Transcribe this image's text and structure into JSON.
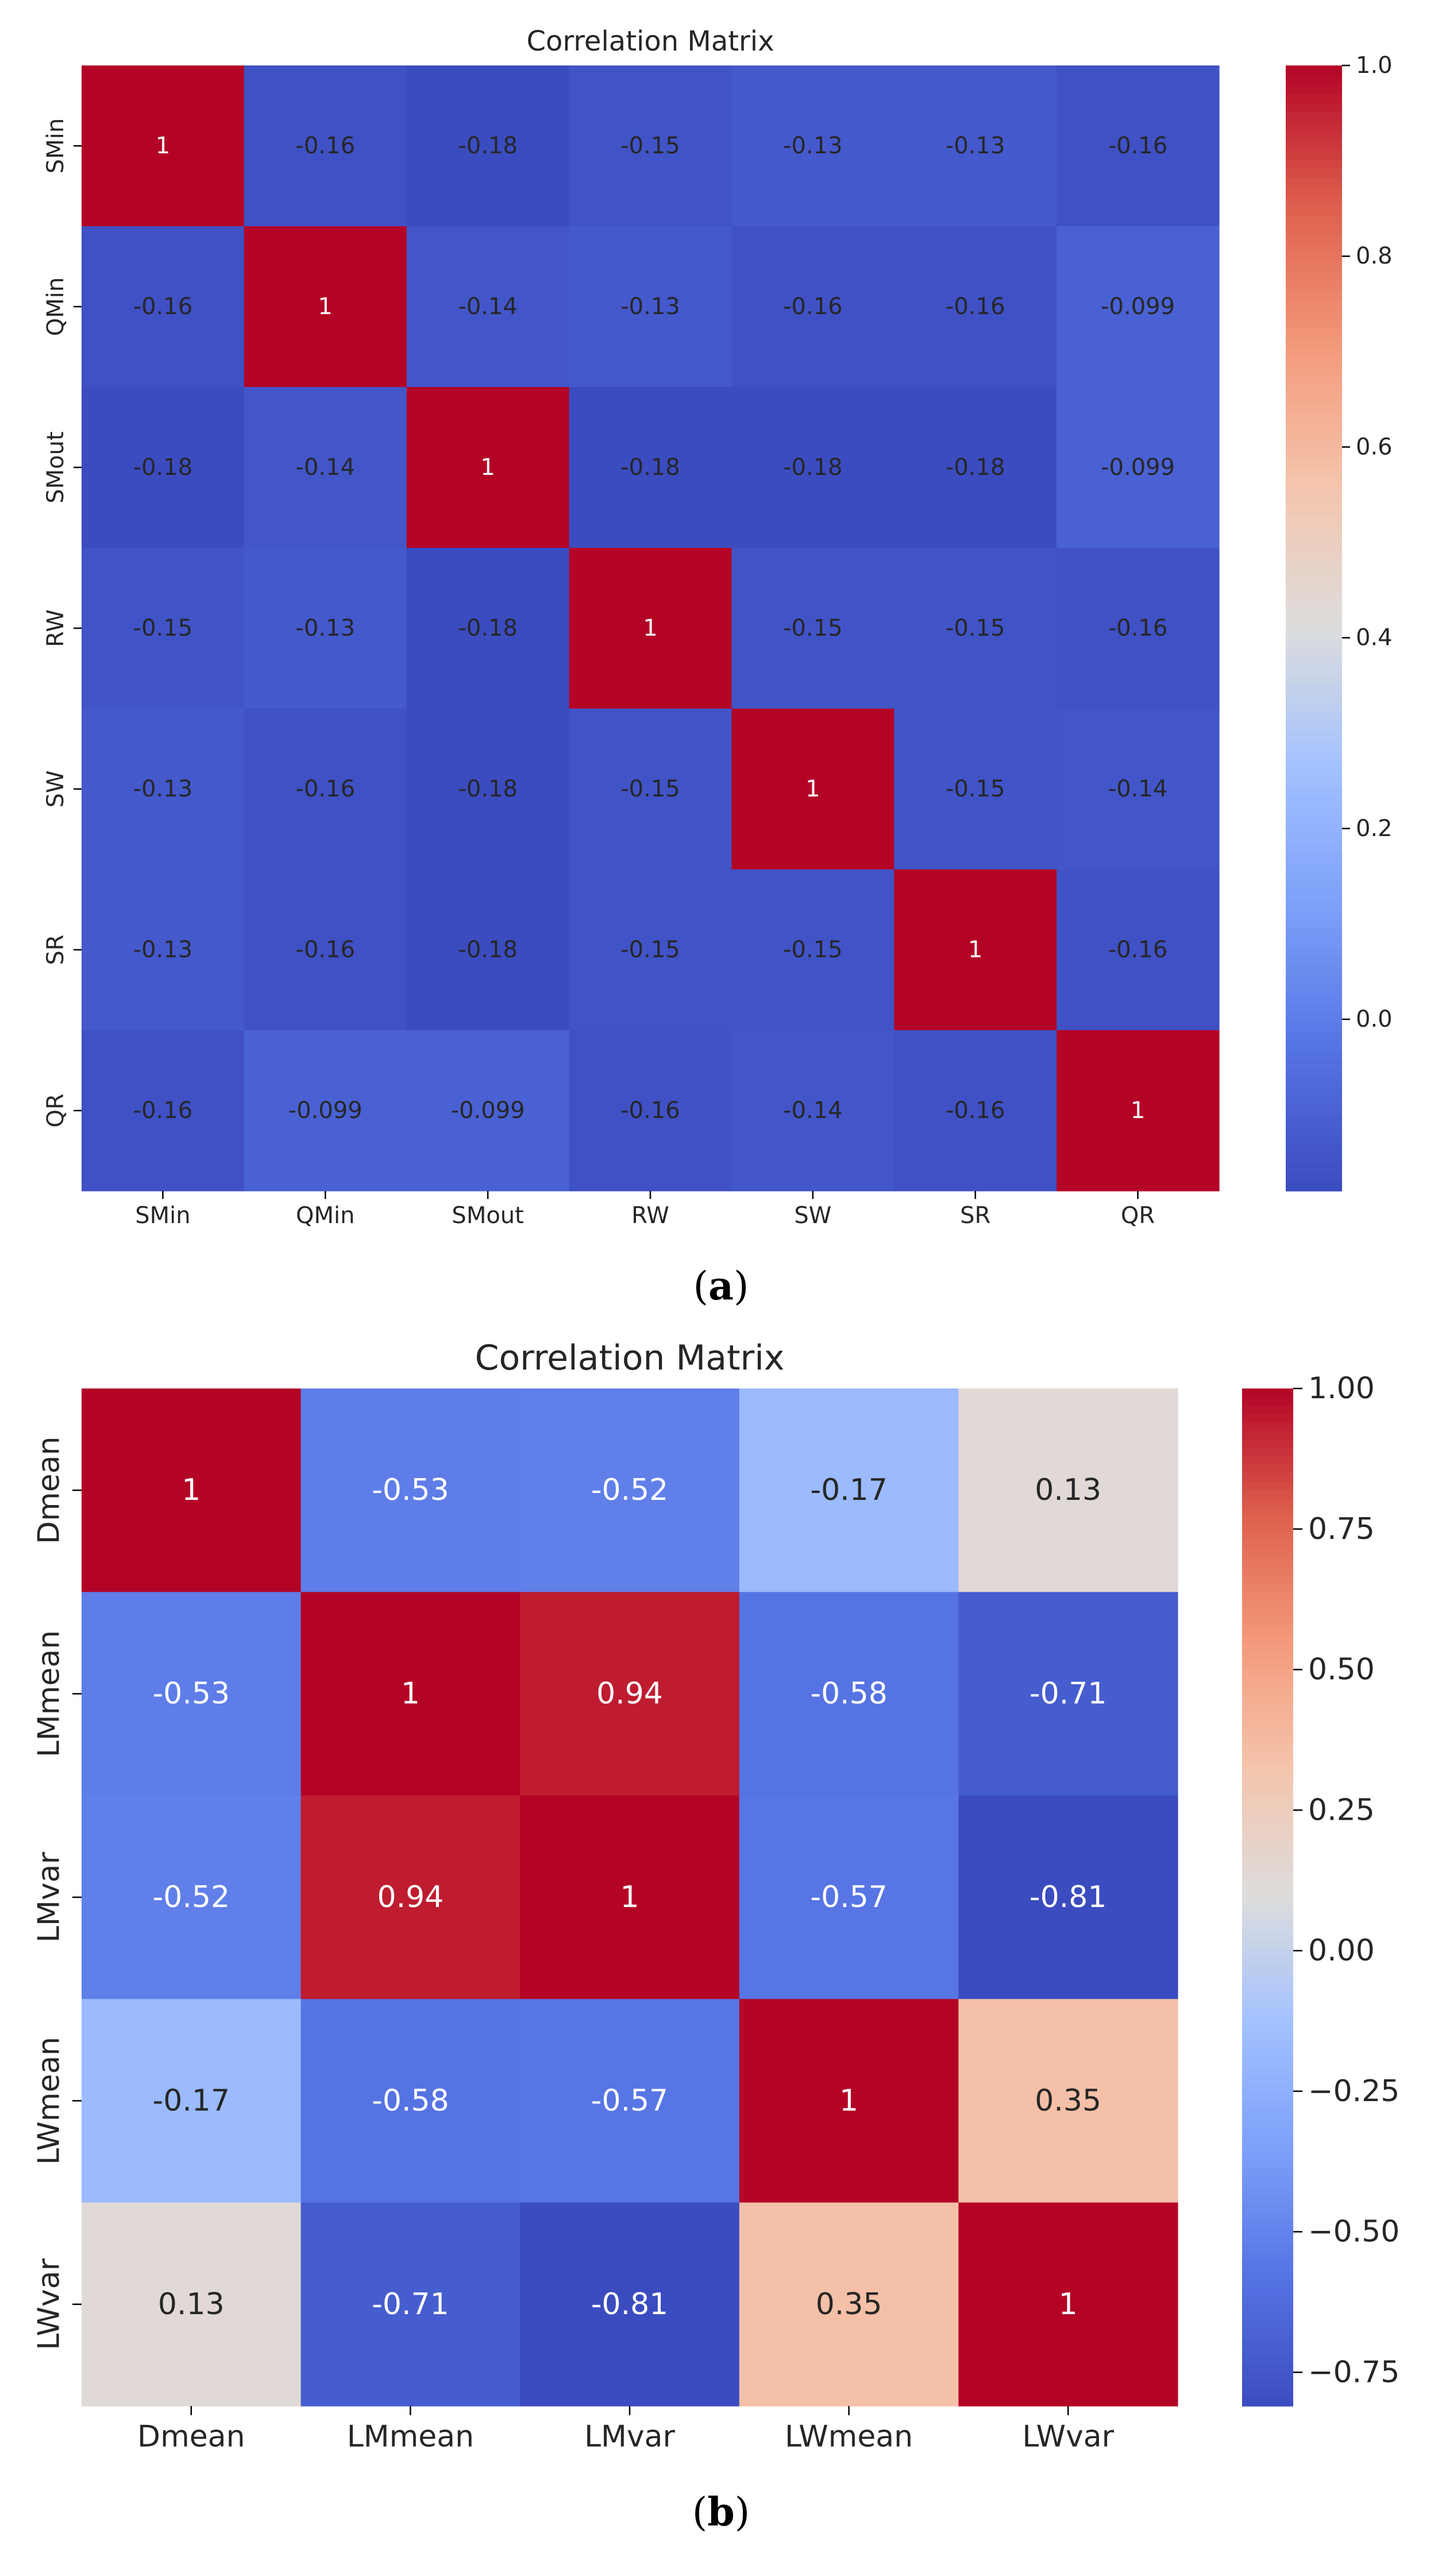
{
  "chart_data": [
    {
      "type": "heatmap",
      "title": "Correlation Matrix",
      "labels": [
        "SMin",
        "QMin",
        "SMout",
        "RW",
        "SW",
        "SR",
        "QR"
      ],
      "values": [
        [
          1,
          -0.16,
          -0.18,
          -0.15,
          -0.13,
          -0.13,
          -0.16
        ],
        [
          -0.16,
          1,
          -0.14,
          -0.13,
          -0.16,
          -0.16,
          -0.099
        ],
        [
          -0.18,
          -0.14,
          1,
          -0.18,
          -0.18,
          -0.18,
          -0.099
        ],
        [
          -0.15,
          -0.13,
          -0.18,
          1,
          -0.15,
          -0.15,
          -0.16
        ],
        [
          -0.13,
          -0.16,
          -0.18,
          -0.15,
          1,
          -0.15,
          -0.14
        ],
        [
          -0.13,
          -0.16,
          -0.18,
          -0.15,
          -0.15,
          1,
          -0.16
        ],
        [
          -0.16,
          -0.099,
          -0.099,
          -0.16,
          -0.14,
          -0.16,
          1
        ]
      ],
      "annotations": [
        [
          "1",
          "-0.16",
          "-0.18",
          "-0.15",
          "-0.13",
          "-0.13",
          "-0.16"
        ],
        [
          "-0.16",
          "1",
          "-0.14",
          "-0.13",
          "-0.16",
          "-0.16",
          "-0.099"
        ],
        [
          "-0.18",
          "-0.14",
          "1",
          "-0.18",
          "-0.18",
          "-0.18",
          "-0.099"
        ],
        [
          "-0.15",
          "-0.13",
          "-0.18",
          "1",
          "-0.15",
          "-0.15",
          "-0.16"
        ],
        [
          "-0.13",
          "-0.16",
          "-0.18",
          "-0.15",
          "1",
          "-0.15",
          "-0.14"
        ],
        [
          "-0.13",
          "-0.16",
          "-0.18",
          "-0.15",
          "-0.15",
          "1",
          "-0.16"
        ],
        [
          "-0.16",
          "-0.099",
          "-0.099",
          "-0.16",
          "-0.14",
          "-0.16",
          "1"
        ]
      ],
      "colorbar": {
        "range": [
          -0.18,
          1.0
        ],
        "ticks": [
          0.0,
          0.2,
          0.4,
          0.6,
          0.8,
          1.0
        ],
        "tick_labels": [
          "0.0",
          "0.2",
          "0.4",
          "0.6",
          "0.8",
          "1.0"
        ]
      },
      "colormap": "coolwarm",
      "caption_label": "a"
    },
    {
      "type": "heatmap",
      "title": "Correlation Matrix",
      "labels": [
        "Dmean",
        "LMmean",
        "LMvar",
        "LWmean",
        "LWvar"
      ],
      "values": [
        [
          1,
          -0.53,
          -0.52,
          -0.17,
          0.13
        ],
        [
          -0.53,
          1,
          0.94,
          -0.58,
          -0.71
        ],
        [
          -0.52,
          0.94,
          1,
          -0.57,
          -0.81
        ],
        [
          -0.17,
          -0.58,
          -0.57,
          1,
          0.35
        ],
        [
          0.13,
          -0.71,
          -0.81,
          0.35,
          1
        ]
      ],
      "annotations": [
        [
          "1",
          "-0.53",
          "-0.52",
          "-0.17",
          "0.13"
        ],
        [
          "-0.53",
          "1",
          "0.94",
          "-0.58",
          "-0.71"
        ],
        [
          "-0.52",
          "0.94",
          "1",
          "-0.57",
          "-0.81"
        ],
        [
          "-0.17",
          "-0.58",
          "-0.57",
          "1",
          "0.35"
        ],
        [
          "0.13",
          "-0.71",
          "-0.81",
          "0.35",
          "1"
        ]
      ],
      "colorbar": {
        "range": [
          -0.81,
          1.0
        ],
        "ticks": [
          -0.75,
          -0.5,
          -0.25,
          0.0,
          0.25,
          0.5,
          0.75,
          1.0
        ],
        "tick_labels": [
          "−0.75",
          "−0.50",
          "−0.25",
          "0.00",
          "0.25",
          "0.50",
          "0.75",
          "1.00"
        ]
      },
      "colormap": "coolwarm",
      "caption_label": "b"
    }
  ],
  "captions": {
    "a": {
      "open": "(",
      "label": "a",
      "close": ")"
    },
    "b": {
      "open": "(",
      "label": "b",
      "close": ")"
    }
  },
  "colors": {
    "coolwarm_low": "#3b4cc0",
    "coolwarm_mid": "#dddddd",
    "coolwarm_high": "#b40426",
    "text_light": "#ffffff",
    "text_dark": "#262626",
    "axis": "#000000"
  }
}
